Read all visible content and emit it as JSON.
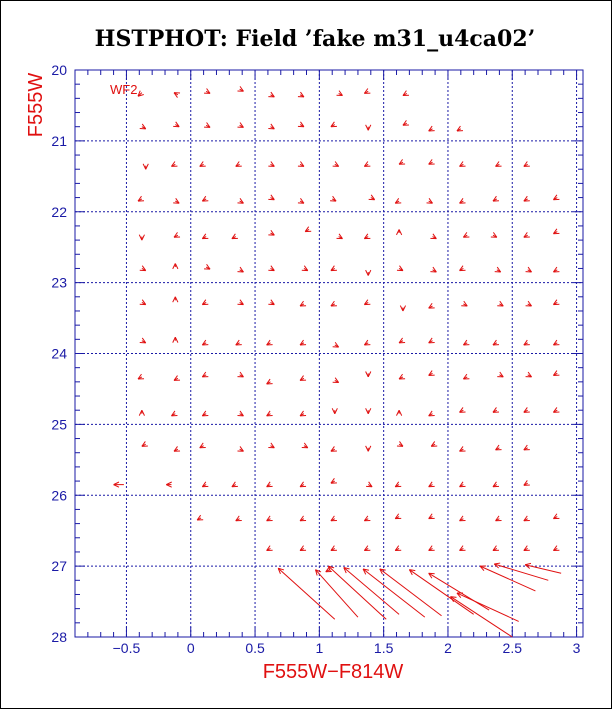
{
  "chart_data": {
    "type": "scatter",
    "title": "HSTPHOT: Field ’fake m31_u4ca02’",
    "xlabel": "F555W−F814W",
    "ylabel": "F555W",
    "annotation": "WF2",
    "xlim": [
      -0.9,
      3.05
    ],
    "ylim": [
      28,
      20
    ],
    "xticks": [
      -0.5,
      0,
      0.5,
      1,
      1.5,
      2,
      2.5,
      3
    ],
    "xtick_labels": [
      "−0.5",
      "0",
      "0.5",
      "1",
      "1.5",
      "2",
      "2.5",
      "3"
    ],
    "yticks": [
      20,
      21,
      22,
      23,
      24,
      25,
      26,
      27,
      28
    ],
    "ytick_labels": [
      "20",
      "21",
      "22",
      "23",
      "24",
      "25",
      "26",
      "27",
      "28"
    ],
    "grid": true,
    "colors": {
      "axes": "#1a1aa6",
      "grid": "#1a1aa6",
      "vectors": "#e01010",
      "labels": "#e01010"
    },
    "vectors": [
      {
        "x": -0.38,
        "y": 20.32,
        "dx": -0.03,
        "dy": 0.05
      },
      {
        "x": -0.1,
        "y": 20.35,
        "dx": -0.03,
        "dy": -0.03
      },
      {
        "x": 0.12,
        "y": 20.3,
        "dx": 0.03,
        "dy": 0.03
      },
      {
        "x": 0.38,
        "y": 20.27,
        "dx": 0.03,
        "dy": 0.03
      },
      {
        "x": 0.62,
        "y": 20.35,
        "dx": 0.03,
        "dy": 0.03
      },
      {
        "x": 0.85,
        "y": 20.35,
        "dx": 0.03,
        "dy": 0.03
      },
      {
        "x": 1.15,
        "y": 20.33,
        "dx": 0.03,
        "dy": 0.03
      },
      {
        "x": 1.38,
        "y": 20.3,
        "dx": -0.03,
        "dy": 0.03
      },
      {
        "x": 1.68,
        "y": 20.33,
        "dx": -0.03,
        "dy": 0.03
      },
      {
        "x": -0.38,
        "y": 20.8,
        "dx": 0.03,
        "dy": 0.03
      },
      {
        "x": -0.12,
        "y": 20.77,
        "dx": 0.03,
        "dy": 0.03
      },
      {
        "x": 0.12,
        "y": 20.78,
        "dx": 0.03,
        "dy": 0.03
      },
      {
        "x": 0.38,
        "y": 20.78,
        "dx": 0.03,
        "dy": 0.03
      },
      {
        "x": 0.62,
        "y": 20.8,
        "dx": 0.03,
        "dy": 0.03
      },
      {
        "x": 0.85,
        "y": 20.77,
        "dx": 0.03,
        "dy": 0.03
      },
      {
        "x": 1.12,
        "y": 20.77,
        "dx": -0.03,
        "dy": 0.03
      },
      {
        "x": 1.38,
        "y": 20.8,
        "dx": 0.0,
        "dy": 0.05
      },
      {
        "x": 1.68,
        "y": 20.75,
        "dx": -0.03,
        "dy": 0.03
      },
      {
        "x": 1.88,
        "y": 20.83,
        "dx": -0.03,
        "dy": 0.03
      },
      {
        "x": 2.1,
        "y": 20.83,
        "dx": -0.03,
        "dy": 0.03
      },
      {
        "x": -0.35,
        "y": 21.35,
        "dx": 0.0,
        "dy": 0.05
      },
      {
        "x": -0.12,
        "y": 21.33,
        "dx": -0.03,
        "dy": 0.03
      },
      {
        "x": 0.1,
        "y": 21.33,
        "dx": -0.03,
        "dy": 0.03
      },
      {
        "x": 0.38,
        "y": 21.33,
        "dx": -0.03,
        "dy": 0.03
      },
      {
        "x": 0.62,
        "y": 21.33,
        "dx": 0.03,
        "dy": 0.03
      },
      {
        "x": 0.85,
        "y": 21.33,
        "dx": 0.03,
        "dy": 0.03
      },
      {
        "x": 1.12,
        "y": 21.33,
        "dx": 0.03,
        "dy": 0.03
      },
      {
        "x": 1.38,
        "y": 21.33,
        "dx": -0.03,
        "dy": 0.03
      },
      {
        "x": 1.65,
        "y": 21.3,
        "dx": -0.03,
        "dy": 0.03
      },
      {
        "x": 1.88,
        "y": 21.3,
        "dx": -0.03,
        "dy": 0.03
      },
      {
        "x": 2.12,
        "y": 21.33,
        "dx": -0.03,
        "dy": 0.03
      },
      {
        "x": 2.4,
        "y": 21.33,
        "dx": -0.03,
        "dy": 0.03
      },
      {
        "x": 2.62,
        "y": 21.33,
        "dx": -0.03,
        "dy": 0.03
      },
      {
        "x": -0.38,
        "y": 21.82,
        "dx": -0.03,
        "dy": 0.03
      },
      {
        "x": -0.12,
        "y": 21.85,
        "dx": 0.03,
        "dy": 0.03
      },
      {
        "x": 0.12,
        "y": 21.82,
        "dx": -0.03,
        "dy": 0.03
      },
      {
        "x": 0.38,
        "y": 21.85,
        "dx": 0.03,
        "dy": 0.03
      },
      {
        "x": 0.62,
        "y": 21.8,
        "dx": 0.03,
        "dy": 0.03
      },
      {
        "x": 0.85,
        "y": 21.85,
        "dx": 0.03,
        "dy": 0.03
      },
      {
        "x": 1.1,
        "y": 21.82,
        "dx": 0.03,
        "dy": 0.03
      },
      {
        "x": 1.4,
        "y": 21.8,
        "dx": 0.03,
        "dy": 0.03
      },
      {
        "x": 1.62,
        "y": 21.85,
        "dx": -0.03,
        "dy": 0.03
      },
      {
        "x": 1.85,
        "y": 21.85,
        "dx": 0.03,
        "dy": 0.03
      },
      {
        "x": 2.12,
        "y": 21.85,
        "dx": -0.03,
        "dy": 0.03
      },
      {
        "x": 2.38,
        "y": 21.82,
        "dx": -0.03,
        "dy": 0.03
      },
      {
        "x": 2.62,
        "y": 21.82,
        "dx": -0.03,
        "dy": 0.03
      },
      {
        "x": 2.85,
        "y": 21.8,
        "dx": -0.03,
        "dy": 0.03
      },
      {
        "x": -0.38,
        "y": 22.35,
        "dx": 0.0,
        "dy": 0.05
      },
      {
        "x": -0.1,
        "y": 22.33,
        "dx": -0.03,
        "dy": 0.03
      },
      {
        "x": 0.12,
        "y": 22.35,
        "dx": -0.03,
        "dy": 0.03
      },
      {
        "x": 0.35,
        "y": 22.35,
        "dx": -0.03,
        "dy": 0.03
      },
      {
        "x": 0.62,
        "y": 22.3,
        "dx": 0.03,
        "dy": 0.03
      },
      {
        "x": 0.92,
        "y": 22.25,
        "dx": -0.03,
        "dy": 0.03
      },
      {
        "x": 1.15,
        "y": 22.35,
        "dx": 0.03,
        "dy": 0.03
      },
      {
        "x": 1.38,
        "y": 22.35,
        "dx": -0.03,
        "dy": 0.03
      },
      {
        "x": 1.62,
        "y": 22.3,
        "dx": 0.0,
        "dy": -0.05
      },
      {
        "x": 1.88,
        "y": 22.35,
        "dx": 0.03,
        "dy": 0.03
      },
      {
        "x": 2.15,
        "y": 22.33,
        "dx": -0.03,
        "dy": 0.03
      },
      {
        "x": 2.35,
        "y": 22.33,
        "dx": 0.03,
        "dy": 0.03
      },
      {
        "x": 2.62,
        "y": 22.33,
        "dx": -0.03,
        "dy": 0.03
      },
      {
        "x": 2.85,
        "y": 22.28,
        "dx": -0.03,
        "dy": 0.03
      },
      {
        "x": -0.38,
        "y": 22.8,
        "dx": 0.03,
        "dy": 0.03
      },
      {
        "x": -0.12,
        "y": 22.78,
        "dx": 0.0,
        "dy": -0.05
      },
      {
        "x": 0.12,
        "y": 22.78,
        "dx": 0.03,
        "dy": 0.03
      },
      {
        "x": 0.38,
        "y": 22.82,
        "dx": 0.03,
        "dy": 0.03
      },
      {
        "x": 0.62,
        "y": 22.8,
        "dx": 0.03,
        "dy": 0.03
      },
      {
        "x": 0.88,
        "y": 22.8,
        "dx": 0.03,
        "dy": 0.03
      },
      {
        "x": 1.12,
        "y": 22.8,
        "dx": -0.03,
        "dy": 0.03
      },
      {
        "x": 1.38,
        "y": 22.85,
        "dx": 0.0,
        "dy": 0.05
      },
      {
        "x": 1.62,
        "y": 22.8,
        "dx": 0.03,
        "dy": 0.03
      },
      {
        "x": 1.88,
        "y": 22.82,
        "dx": 0.03,
        "dy": 0.03
      },
      {
        "x": 2.12,
        "y": 22.8,
        "dx": -0.03,
        "dy": 0.03
      },
      {
        "x": 2.38,
        "y": 22.82,
        "dx": 0.03,
        "dy": 0.03
      },
      {
        "x": 2.62,
        "y": 22.82,
        "dx": 0.03,
        "dy": 0.03
      },
      {
        "x": 2.85,
        "y": 22.82,
        "dx": -0.03,
        "dy": 0.03
      },
      {
        "x": -0.38,
        "y": 23.28,
        "dx": 0.03,
        "dy": 0.03
      },
      {
        "x": -0.12,
        "y": 23.25,
        "dx": 0.0,
        "dy": -0.05
      },
      {
        "x": 0.12,
        "y": 23.28,
        "dx": -0.03,
        "dy": 0.03
      },
      {
        "x": 0.38,
        "y": 23.28,
        "dx": 0.03,
        "dy": 0.03
      },
      {
        "x": 0.62,
        "y": 23.28,
        "dx": 0.03,
        "dy": 0.03
      },
      {
        "x": 0.88,
        "y": 23.3,
        "dx": -0.03,
        "dy": 0.03
      },
      {
        "x": 1.12,
        "y": 23.3,
        "dx": -0.03,
        "dy": 0.03
      },
      {
        "x": 1.38,
        "y": 23.28,
        "dx": -0.03,
        "dy": 0.03
      },
      {
        "x": 1.65,
        "y": 23.35,
        "dx": 0.0,
        "dy": 0.05
      },
      {
        "x": 1.88,
        "y": 23.33,
        "dx": -0.03,
        "dy": 0.03
      },
      {
        "x": 2.12,
        "y": 23.3,
        "dx": 0.03,
        "dy": 0.03
      },
      {
        "x": 2.4,
        "y": 23.3,
        "dx": 0.03,
        "dy": 0.03
      },
      {
        "x": 2.62,
        "y": 23.3,
        "dx": 0.03,
        "dy": 0.03
      },
      {
        "x": 2.85,
        "y": 23.28,
        "dx": -0.03,
        "dy": 0.03
      },
      {
        "x": -0.38,
        "y": 23.82,
        "dx": 0.03,
        "dy": 0.03
      },
      {
        "x": -0.12,
        "y": 23.82,
        "dx": 0.0,
        "dy": -0.05
      },
      {
        "x": 0.12,
        "y": 23.85,
        "dx": -0.03,
        "dy": 0.03
      },
      {
        "x": 0.38,
        "y": 23.85,
        "dx": -0.03,
        "dy": 0.03
      },
      {
        "x": 0.62,
        "y": 23.85,
        "dx": -0.03,
        "dy": 0.03
      },
      {
        "x": 0.88,
        "y": 23.85,
        "dx": -0.03,
        "dy": 0.03
      },
      {
        "x": 1.12,
        "y": 23.88,
        "dx": 0.03,
        "dy": 0.03
      },
      {
        "x": 1.38,
        "y": 23.85,
        "dx": -0.03,
        "dy": 0.03
      },
      {
        "x": 1.65,
        "y": 23.82,
        "dx": -0.03,
        "dy": 0.03
      },
      {
        "x": 1.88,
        "y": 23.82,
        "dx": -0.03,
        "dy": 0.03
      },
      {
        "x": 2.15,
        "y": 23.85,
        "dx": -0.03,
        "dy": 0.03
      },
      {
        "x": 2.38,
        "y": 23.85,
        "dx": -0.03,
        "dy": 0.03
      },
      {
        "x": 2.62,
        "y": 23.85,
        "dx": -0.03,
        "dy": 0.03
      },
      {
        "x": 2.85,
        "y": 23.85,
        "dx": -0.03,
        "dy": 0.03
      },
      {
        "x": -0.38,
        "y": 24.33,
        "dx": -0.03,
        "dy": 0.03
      },
      {
        "x": -0.1,
        "y": 24.35,
        "dx": -0.03,
        "dy": 0.03
      },
      {
        "x": 0.12,
        "y": 24.3,
        "dx": -0.03,
        "dy": 0.03
      },
      {
        "x": 0.38,
        "y": 24.3,
        "dx": 0.03,
        "dy": 0.03
      },
      {
        "x": 0.62,
        "y": 24.4,
        "dx": -0.03,
        "dy": 0.03
      },
      {
        "x": 0.88,
        "y": 24.35,
        "dx": -0.03,
        "dy": 0.03
      },
      {
        "x": 1.12,
        "y": 24.38,
        "dx": 0.03,
        "dy": 0.03
      },
      {
        "x": 1.38,
        "y": 24.28,
        "dx": 0.0,
        "dy": 0.05
      },
      {
        "x": 1.65,
        "y": 24.33,
        "dx": -0.03,
        "dy": 0.03
      },
      {
        "x": 1.88,
        "y": 24.28,
        "dx": -0.03,
        "dy": 0.03
      },
      {
        "x": 2.15,
        "y": 24.33,
        "dx": -0.03,
        "dy": 0.03
      },
      {
        "x": 2.4,
        "y": 24.3,
        "dx": 0.03,
        "dy": 0.03
      },
      {
        "x": 2.62,
        "y": 24.3,
        "dx": 0.03,
        "dy": 0.03
      },
      {
        "x": 2.85,
        "y": 24.28,
        "dx": -0.03,
        "dy": 0.03
      },
      {
        "x": -0.38,
        "y": 24.85,
        "dx": 0.0,
        "dy": -0.05
      },
      {
        "x": -0.12,
        "y": 24.85,
        "dx": -0.03,
        "dy": 0.03
      },
      {
        "x": 0.12,
        "y": 24.85,
        "dx": -0.03,
        "dy": 0.03
      },
      {
        "x": 0.38,
        "y": 24.85,
        "dx": 0.03,
        "dy": 0.03
      },
      {
        "x": 0.62,
        "y": 24.85,
        "dx": -0.03,
        "dy": 0.03
      },
      {
        "x": 0.88,
        "y": 24.85,
        "dx": -0.03,
        "dy": 0.03
      },
      {
        "x": 1.12,
        "y": 24.8,
        "dx": 0.0,
        "dy": 0.05
      },
      {
        "x": 1.38,
        "y": 24.8,
        "dx": 0.0,
        "dy": 0.05
      },
      {
        "x": 1.62,
        "y": 24.85,
        "dx": 0.0,
        "dy": -0.05
      },
      {
        "x": 1.88,
        "y": 24.85,
        "dx": -0.03,
        "dy": 0.03
      },
      {
        "x": 2.12,
        "y": 24.8,
        "dx": -0.03,
        "dy": 0.03
      },
      {
        "x": 2.38,
        "y": 24.8,
        "dx": -0.03,
        "dy": 0.03
      },
      {
        "x": 2.62,
        "y": 24.8,
        "dx": -0.03,
        "dy": 0.03
      },
      {
        "x": 2.85,
        "y": 24.8,
        "dx": -0.03,
        "dy": 0.03
      },
      {
        "x": -0.35,
        "y": 25.28,
        "dx": -0.03,
        "dy": 0.03
      },
      {
        "x": -0.1,
        "y": 25.35,
        "dx": -0.03,
        "dy": 0.03
      },
      {
        "x": 0.1,
        "y": 25.3,
        "dx": -0.03,
        "dy": 0.03
      },
      {
        "x": 0.38,
        "y": 25.35,
        "dx": 0.03,
        "dy": 0.03
      },
      {
        "x": 0.62,
        "y": 25.3,
        "dx": 0.03,
        "dy": 0.03
      },
      {
        "x": 0.88,
        "y": 25.3,
        "dx": 0.03,
        "dy": 0.03
      },
      {
        "x": 1.12,
        "y": 25.35,
        "dx": -0.03,
        "dy": 0.03
      },
      {
        "x": 1.38,
        "y": 25.33,
        "dx": 0.0,
        "dy": 0.05
      },
      {
        "x": 1.62,
        "y": 25.28,
        "dx": 0.03,
        "dy": 0.03
      },
      {
        "x": 1.9,
        "y": 25.28,
        "dx": -0.03,
        "dy": 0.03
      },
      {
        "x": 2.12,
        "y": 25.35,
        "dx": -0.03,
        "dy": 0.03
      },
      {
        "x": 2.4,
        "y": 25.33,
        "dx": -0.03,
        "dy": 0.03
      },
      {
        "x": 2.62,
        "y": 25.33,
        "dx": -0.03,
        "dy": 0.03
      },
      {
        "x": -0.52,
        "y": 25.85,
        "dx": -0.08,
        "dy": 0.0
      },
      {
        "x": -0.15,
        "y": 25.85,
        "dx": -0.04,
        "dy": 0.0
      },
      {
        "x": 0.12,
        "y": 25.85,
        "dx": -0.03,
        "dy": 0.03
      },
      {
        "x": 0.35,
        "y": 25.85,
        "dx": -0.03,
        "dy": 0.03
      },
      {
        "x": 0.62,
        "y": 25.85,
        "dx": -0.03,
        "dy": 0.03
      },
      {
        "x": 0.88,
        "y": 25.85,
        "dx": -0.03,
        "dy": 0.03
      },
      {
        "x": 1.12,
        "y": 25.8,
        "dx": -0.03,
        "dy": 0.03
      },
      {
        "x": 1.38,
        "y": 25.85,
        "dx": 0.03,
        "dy": 0.03
      },
      {
        "x": 1.62,
        "y": 25.85,
        "dx": -0.03,
        "dy": 0.03
      },
      {
        "x": 1.88,
        "y": 25.85,
        "dx": -0.03,
        "dy": 0.03
      },
      {
        "x": 2.12,
        "y": 25.85,
        "dx": -0.03,
        "dy": 0.03
      },
      {
        "x": 2.38,
        "y": 25.85,
        "dx": -0.03,
        "dy": 0.03
      },
      {
        "x": 2.62,
        "y": 25.83,
        "dx": -0.03,
        "dy": 0.03
      },
      {
        "x": 0.08,
        "y": 26.32,
        "dx": -0.03,
        "dy": 0.03
      },
      {
        "x": 0.38,
        "y": 26.33,
        "dx": -0.03,
        "dy": 0.03
      },
      {
        "x": 0.62,
        "y": 26.33,
        "dx": -0.03,
        "dy": 0.03
      },
      {
        "x": 0.88,
        "y": 26.33,
        "dx": -0.03,
        "dy": 0.03
      },
      {
        "x": 1.12,
        "y": 26.33,
        "dx": -0.03,
        "dy": 0.03
      },
      {
        "x": 1.38,
        "y": 26.33,
        "dx": -0.03,
        "dy": 0.03
      },
      {
        "x": 1.62,
        "y": 26.3,
        "dx": -0.03,
        "dy": 0.03
      },
      {
        "x": 1.88,
        "y": 26.3,
        "dx": -0.03,
        "dy": 0.03
      },
      {
        "x": 2.12,
        "y": 26.33,
        "dx": -0.03,
        "dy": 0.03
      },
      {
        "x": 2.4,
        "y": 26.33,
        "dx": -0.03,
        "dy": 0.03
      },
      {
        "x": 2.62,
        "y": 26.33,
        "dx": -0.03,
        "dy": 0.03
      },
      {
        "x": 2.85,
        "y": 26.3,
        "dx": -0.03,
        "dy": 0.03
      },
      {
        "x": 0.62,
        "y": 26.75,
        "dx": -0.03,
        "dy": 0.03
      },
      {
        "x": 0.88,
        "y": 26.75,
        "dx": -0.03,
        "dy": 0.03
      },
      {
        "x": 1.12,
        "y": 26.75,
        "dx": -0.03,
        "dy": 0.03
      },
      {
        "x": 1.38,
        "y": 26.75,
        "dx": -0.03,
        "dy": 0.03
      },
      {
        "x": 1.62,
        "y": 26.75,
        "dx": -0.03,
        "dy": 0.03
      },
      {
        "x": 1.88,
        "y": 26.75,
        "dx": -0.03,
        "dy": 0.03
      },
      {
        "x": 2.12,
        "y": 26.75,
        "dx": -0.03,
        "dy": 0.03
      },
      {
        "x": 2.38,
        "y": 26.75,
        "dx": -0.03,
        "dy": 0.03
      },
      {
        "x": 2.62,
        "y": 26.75,
        "dx": -0.03,
        "dy": 0.03
      },
      {
        "x": 2.85,
        "y": 26.75,
        "dx": -0.03,
        "dy": 0.03
      },
      {
        "x": 1.12,
        "y": 27.75,
        "dx": -0.44,
        "dy": -0.72
      },
      {
        "x": 1.3,
        "y": 27.72,
        "dx": -0.33,
        "dy": -0.67
      },
      {
        "x": 1.52,
        "y": 27.75,
        "dx": -0.45,
        "dy": -0.75
      },
      {
        "x": 1.62,
        "y": 27.68,
        "dx": -0.43,
        "dy": -0.66
      },
      {
        "x": 1.82,
        "y": 27.72,
        "dx": -0.48,
        "dy": -0.68
      },
      {
        "x": 1.95,
        "y": 27.7,
        "dx": -0.48,
        "dy": -0.66
      },
      {
        "x": 2.2,
        "y": 27.68,
        "dx": -0.5,
        "dy": -0.63
      },
      {
        "x": 2.32,
        "y": 27.62,
        "dx": -0.47,
        "dy": -0.52
      },
      {
        "x": 2.5,
        "y": 28.0,
        "dx": -0.48,
        "dy": -0.57
      },
      {
        "x": 2.55,
        "y": 27.78,
        "dx": -0.48,
        "dy": -0.4
      },
      {
        "x": 2.68,
        "y": 27.35,
        "dx": -0.43,
        "dy": -0.35
      },
      {
        "x": 2.78,
        "y": 27.2,
        "dx": -0.42,
        "dy": -0.23
      },
      {
        "x": 2.88,
        "y": 27.1,
        "dx": -0.28,
        "dy": -0.12
      },
      {
        "x": 1.08,
        "y": 27.05,
        "dx": -0.03,
        "dy": 0.03
      }
    ]
  }
}
